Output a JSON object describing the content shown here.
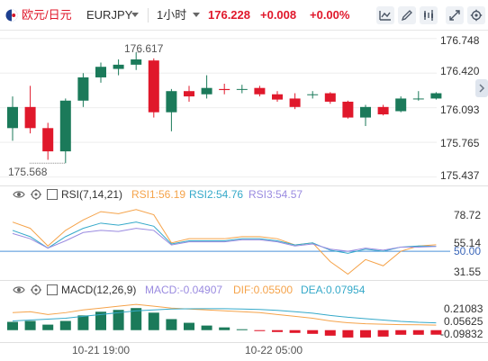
{
  "header": {
    "pair_cn": "欧元/日元",
    "symbol": "EURJPY",
    "interval": "1小时",
    "price": "176.228",
    "change": "+0.008",
    "change_pct": "+0.00%",
    "up_color": "#e0182b",
    "down_color": "#1b7a5a",
    "icons": [
      "line-chart-icon",
      "draw-pen-icon",
      "indicator-icon",
      "expand-icon",
      "settings-icon"
    ]
  },
  "price_axis": {
    "ticks": [
      "176.748",
      "176.420",
      "176.093",
      "175.765",
      "175.437"
    ],
    "max_label": "176.617",
    "min_label": "175.568"
  },
  "rsi": {
    "title": "RSI(7,14,21)",
    "rsi1": "RSI1:56.19",
    "rsi2": "RSI2:54.76",
    "rsi3": "RSI3:54.57",
    "ticks": [
      "78.72",
      "55.14",
      "50.00",
      "31.55"
    ]
  },
  "macd": {
    "title": "MACD(12,26,9)",
    "macd": "MACD:-0.04907",
    "dif": "DIF:0.05500",
    "dea": "DEA:0.07954",
    "ticks": [
      "0.21083",
      "0.05625",
      "-0.09832"
    ]
  },
  "time_axis": {
    "labels": [
      "10-21 19:00",
      "10-22 05:00"
    ]
  },
  "chart_data": [
    {
      "type": "candlestick",
      "title": "EURJPY 1小时",
      "ylim": [
        175.4,
        176.78
      ],
      "y_ticks": [
        176.748,
        176.42,
        176.093,
        175.765,
        175.437
      ],
      "candles": [
        {
          "o": 175.9,
          "h": 176.2,
          "l": 175.78,
          "c": 176.1
        },
        {
          "o": 176.1,
          "h": 176.3,
          "l": 175.85,
          "c": 175.9
        },
        {
          "o": 175.9,
          "h": 175.95,
          "l": 175.6,
          "c": 175.68
        },
        {
          "o": 175.68,
          "h": 176.18,
          "l": 175.568,
          "c": 176.16
        },
        {
          "o": 176.16,
          "h": 176.42,
          "l": 176.1,
          "c": 176.38
        },
        {
          "o": 176.38,
          "h": 176.52,
          "l": 176.33,
          "c": 176.48
        },
        {
          "o": 176.46,
          "h": 176.55,
          "l": 176.4,
          "c": 176.5
        },
        {
          "o": 176.5,
          "h": 176.617,
          "l": 176.45,
          "c": 176.55
        },
        {
          "o": 176.54,
          "h": 176.56,
          "l": 176.0,
          "c": 176.05
        },
        {
          "o": 176.05,
          "h": 176.27,
          "l": 175.87,
          "c": 176.25
        },
        {
          "o": 176.25,
          "h": 176.3,
          "l": 176.15,
          "c": 176.2
        },
        {
          "o": 176.22,
          "h": 176.4,
          "l": 176.18,
          "c": 176.28
        },
        {
          "o": 176.27,
          "h": 176.32,
          "l": 176.22,
          "c": 176.26
        },
        {
          "o": 176.27,
          "h": 176.31,
          "l": 176.23,
          "c": 176.27
        },
        {
          "o": 176.28,
          "h": 176.3,
          "l": 176.2,
          "c": 176.22
        },
        {
          "o": 176.22,
          "h": 176.25,
          "l": 176.15,
          "c": 176.17
        },
        {
          "o": 176.18,
          "h": 176.23,
          "l": 176.08,
          "c": 176.1
        },
        {
          "o": 176.22,
          "h": 176.25,
          "l": 176.18,
          "c": 176.22
        },
        {
          "o": 176.23,
          "h": 176.24,
          "l": 176.13,
          "c": 176.15
        },
        {
          "o": 176.15,
          "h": 176.16,
          "l": 175.99,
          "c": 176.0
        },
        {
          "o": 176.0,
          "h": 176.12,
          "l": 175.92,
          "c": 176.1
        },
        {
          "o": 176.1,
          "h": 176.12,
          "l": 176.02,
          "c": 176.03
        },
        {
          "o": 176.06,
          "h": 176.2,
          "l": 176.05,
          "c": 176.18
        },
        {
          "o": 176.18,
          "h": 176.25,
          "l": 176.16,
          "c": 176.18
        },
        {
          "o": 176.18,
          "h": 176.24,
          "l": 176.17,
          "c": 176.23
        }
      ]
    },
    {
      "type": "line",
      "title": "RSI(7,14,21)",
      "ylim": [
        25,
        95
      ],
      "reference_line": 50.0,
      "series": [
        {
          "name": "RSI1",
          "color": "#f5a34a",
          "values": [
            78,
            72,
            55,
            70,
            80,
            88,
            86,
            90,
            85,
            58,
            62,
            62,
            62,
            64,
            64,
            62,
            56,
            58,
            40,
            28,
            42,
            36,
            50,
            55,
            56.19
          ]
        },
        {
          "name": "RSI2",
          "color": "#35a9c9",
          "values": [
            70,
            64,
            53,
            64,
            72,
            77,
            75,
            78,
            74,
            57,
            60,
            60,
            60,
            62,
            62,
            60,
            56,
            58,
            51,
            48,
            52,
            50,
            54,
            55,
            54.76
          ]
        },
        {
          "name": "RSI3",
          "color": "#9a8be0",
          "values": [
            67,
            62,
            53,
            60,
            68,
            70,
            69,
            72,
            70,
            56,
            59,
            59,
            59,
            61,
            61,
            59,
            55,
            57,
            52,
            50,
            53,
            51,
            54,
            54,
            54.57
          ]
        }
      ]
    },
    {
      "type": "bar",
      "title": "MACD(12,26,9)",
      "ylim": [
        -0.12,
        0.33
      ],
      "histogram": [
        0.09,
        0.1,
        0.06,
        0.1,
        0.16,
        0.2,
        0.22,
        0.24,
        0.19,
        0.12,
        0.08,
        0.05,
        0.03,
        0.01,
        -0.01,
        -0.02,
        -0.03,
        -0.04,
        -0.06,
        -0.08,
        -0.08,
        -0.07,
        -0.05,
        -0.05,
        -0.04907
      ],
      "series": [
        {
          "name": "DIF",
          "color": "#f5a34a",
          "values": [
            0.19,
            0.2,
            0.17,
            0.19,
            0.22,
            0.24,
            0.26,
            0.28,
            0.26,
            0.24,
            0.23,
            0.22,
            0.21,
            0.2,
            0.19,
            0.17,
            0.15,
            0.13,
            0.1,
            0.08,
            0.07,
            0.065,
            0.06,
            0.058,
            0.055
          ]
        },
        {
          "name": "DEA",
          "color": "#35a9c9",
          "values": [
            0.1,
            0.11,
            0.12,
            0.13,
            0.15,
            0.17,
            0.19,
            0.21,
            0.22,
            0.23,
            0.232,
            0.234,
            0.233,
            0.23,
            0.225,
            0.215,
            0.2,
            0.185,
            0.16,
            0.14,
            0.125,
            0.11,
            0.095,
            0.085,
            0.0795
          ]
        }
      ]
    }
  ]
}
